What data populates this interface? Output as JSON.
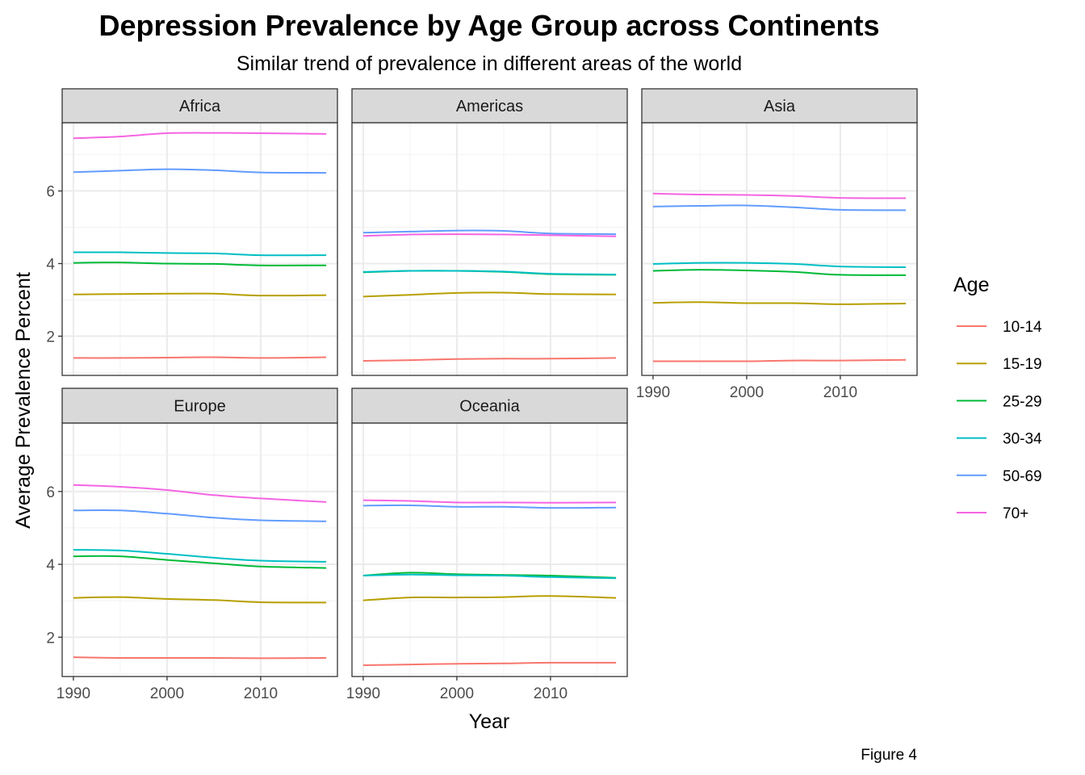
{
  "chart_data": {
    "type": "line",
    "title": "Depression Prevalence by Age Group across Continents",
    "subtitle": "Similar trend of prevalence in different areas of the world",
    "xlabel": "Year",
    "ylabel": "Average Prevalence Percent",
    "caption": "Figure 4",
    "xlim": [
      1988.8,
      2018.2
    ],
    "ylim": [
      0.92,
      7.88
    ],
    "x_ticks": [
      1990,
      2000,
      2010
    ],
    "y_ticks": [
      2,
      4,
      6
    ],
    "grid": true,
    "legend": {
      "title": "Age",
      "placement": "right",
      "entries": [
        "10-14",
        "15-19",
        "25-29",
        "30-34",
        "50-69",
        "70+"
      ]
    },
    "colors": {
      "10-14": "#F8766D",
      "15-19": "#B79F00",
      "25-29": "#00BA38",
      "30-34": "#00BFC4",
      "50-69": "#619CFF",
      "70+": "#F564E3"
    },
    "x": [
      1990,
      1995,
      2000,
      2005,
      2010,
      2017
    ],
    "facets": [
      {
        "name": "Africa",
        "series": [
          {
            "name": "10-14",
            "values": [
              1.4,
              1.4,
              1.41,
              1.42,
              1.4,
              1.42
            ]
          },
          {
            "name": "15-19",
            "values": [
              3.15,
              3.16,
              3.17,
              3.17,
              3.12,
              3.13
            ]
          },
          {
            "name": "25-29",
            "values": [
              4.02,
              4.03,
              4.0,
              3.99,
              3.95,
              3.95
            ]
          },
          {
            "name": "30-34",
            "values": [
              4.31,
              4.31,
              4.29,
              4.28,
              4.23,
              4.23
            ]
          },
          {
            "name": "50-69",
            "values": [
              6.52,
              6.56,
              6.6,
              6.57,
              6.51,
              6.5
            ]
          },
          {
            "name": "70+",
            "values": [
              7.45,
              7.5,
              7.59,
              7.6,
              7.59,
              7.57
            ]
          }
        ]
      },
      {
        "name": "Americas",
        "series": [
          {
            "name": "10-14",
            "values": [
              1.32,
              1.34,
              1.37,
              1.38,
              1.38,
              1.4
            ]
          },
          {
            "name": "15-19",
            "values": [
              3.09,
              3.14,
              3.19,
              3.2,
              3.16,
              3.15
            ]
          },
          {
            "name": "25-29",
            "values": [
              3.76,
              3.8,
              3.8,
              3.77,
              3.71,
              3.69
            ]
          },
          {
            "name": "30-34",
            "values": [
              3.77,
              3.8,
              3.8,
              3.78,
              3.72,
              3.7
            ]
          },
          {
            "name": "50-69",
            "values": [
              4.85,
              4.88,
              4.91,
              4.9,
              4.83,
              4.81
            ]
          },
          {
            "name": "70+",
            "values": [
              4.76,
              4.8,
              4.81,
              4.8,
              4.78,
              4.75
            ]
          }
        ]
      },
      {
        "name": "Asia",
        "series": [
          {
            "name": "10-14",
            "values": [
              1.31,
              1.31,
              1.31,
              1.33,
              1.33,
              1.35
            ]
          },
          {
            "name": "15-19",
            "values": [
              2.92,
              2.94,
              2.91,
              2.91,
              2.88,
              2.9
            ]
          },
          {
            "name": "25-29",
            "values": [
              3.8,
              3.83,
              3.81,
              3.77,
              3.69,
              3.68
            ]
          },
          {
            "name": "30-34",
            "values": [
              3.99,
              4.02,
              4.02,
              3.99,
              3.92,
              3.9
            ]
          },
          {
            "name": "50-69",
            "values": [
              5.57,
              5.59,
              5.6,
              5.55,
              5.48,
              5.47
            ]
          },
          {
            "name": "70+",
            "values": [
              5.93,
              5.9,
              5.89,
              5.86,
              5.81,
              5.8
            ]
          }
        ]
      },
      {
        "name": "Europe",
        "series": [
          {
            "name": "10-14",
            "values": [
              1.45,
              1.43,
              1.43,
              1.43,
              1.42,
              1.43
            ]
          },
          {
            "name": "15-19",
            "values": [
              3.08,
              3.1,
              3.05,
              3.02,
              2.96,
              2.95
            ]
          },
          {
            "name": "25-29",
            "values": [
              4.22,
              4.22,
              4.12,
              4.03,
              3.94,
              3.9
            ]
          },
          {
            "name": "30-34",
            "values": [
              4.4,
              4.38,
              4.29,
              4.18,
              4.1,
              4.07
            ]
          },
          {
            "name": "50-69",
            "values": [
              5.48,
              5.48,
              5.39,
              5.28,
              5.21,
              5.18
            ]
          },
          {
            "name": "70+",
            "values": [
              6.18,
              6.13,
              6.04,
              5.9,
              5.81,
              5.71
            ]
          }
        ]
      },
      {
        "name": "Oceania",
        "series": [
          {
            "name": "10-14",
            "values": [
              1.23,
              1.25,
              1.27,
              1.28,
              1.3,
              1.3
            ]
          },
          {
            "name": "15-19",
            "values": [
              3.01,
              3.09,
              3.09,
              3.1,
              3.13,
              3.08
            ]
          },
          {
            "name": "25-29",
            "values": [
              3.69,
              3.77,
              3.73,
              3.71,
              3.69,
              3.63
            ]
          },
          {
            "name": "30-34",
            "values": [
              3.69,
              3.72,
              3.7,
              3.69,
              3.65,
              3.62
            ]
          },
          {
            "name": "50-69",
            "values": [
              5.61,
              5.62,
              5.58,
              5.58,
              5.55,
              5.56
            ]
          },
          {
            "name": "70+",
            "values": [
              5.76,
              5.74,
              5.7,
              5.7,
              5.69,
              5.7
            ]
          }
        ]
      }
    ]
  }
}
